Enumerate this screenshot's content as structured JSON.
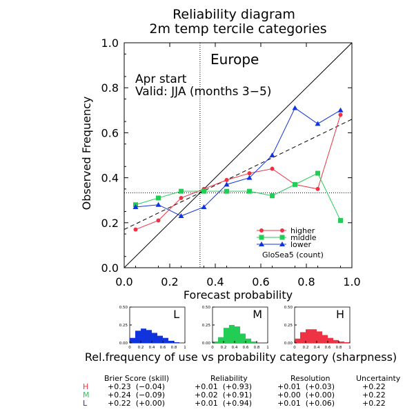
{
  "title": {
    "line1": "Reliability diagram",
    "line2": "2m temp tercile categories"
  },
  "main_chart": {
    "region": "Europe",
    "start": "Apr start",
    "valid": "Valid: JJA (months 3−5)",
    "xlabel": "Forecast probability",
    "ylabel": "Observed Frequency",
    "xticks": [
      "0.0",
      "0.2",
      "0.4",
      "0.6",
      "0.8",
      "1.0"
    ],
    "yticks": [
      "0.0",
      "0.2",
      "0.4",
      "0.6",
      "0.8",
      "1.0"
    ],
    "legend": {
      "higher": "higher",
      "middle": "middle",
      "lower": "lower",
      "model": "GloSea5 (count)"
    }
  },
  "sharpness": {
    "caption": "Rel.frequency of use vs probability category (sharpness)",
    "yticks": [
      "0.50",
      "0.25",
      "0.00"
    ],
    "xticks": [
      "0",
      "0.2",
      "0.4",
      "0.6",
      "0.8",
      "1"
    ]
  },
  "scores": {
    "headers": {
      "brier": "Brier Score (skill)",
      "reliability": "Reliability",
      "resolution": "Resolution",
      "uncertainty": "Uncertainty"
    },
    "rows": [
      {
        "cat": "H",
        "brier": "+0.23  (−0.04)",
        "rel": "+0.01  (+0.93)",
        "res": "+0.01  (+0.03)",
        "unc": "+0.22"
      },
      {
        "cat": "M",
        "brier": "+0.24  (−0.09)",
        "rel": "+0.02  (+0.91)",
        "res": "+0.00  (+0.00)",
        "unc": "+0.22"
      },
      {
        "cat": "L",
        "brier": "+0.22  (+0.00)",
        "rel": "+0.01  (+0.94)",
        "res": "+0.01  (+0.06)",
        "unc": "+0.22"
      }
    ]
  },
  "colors": {
    "higher": "#ee3344",
    "middle": "#22cc55",
    "lower": "#1133dd",
    "axes": "#000000"
  },
  "chart_data": [
    {
      "type": "line",
      "title": "Reliability diagram 2m temp tercile categories",
      "xlabel": "Forecast probability",
      "ylabel": "Observed Frequency",
      "xlim": [
        0,
        1
      ],
      "ylim": [
        0,
        1
      ],
      "x": [
        0.05,
        0.15,
        0.25,
        0.35,
        0.45,
        0.55,
        0.65,
        0.75,
        0.85,
        0.95
      ],
      "series": [
        {
          "name": "higher",
          "values": [
            0.17,
            0.21,
            0.31,
            0.35,
            0.39,
            0.42,
            0.44,
            0.37,
            0.35,
            0.68
          ]
        },
        {
          "name": "middle",
          "values": [
            0.28,
            0.31,
            0.34,
            0.34,
            0.34,
            0.34,
            0.32,
            0.37,
            0.42,
            0.21
          ]
        },
        {
          "name": "lower",
          "values": [
            0.27,
            0.28,
            0.23,
            0.27,
            0.37,
            0.4,
            0.5,
            0.71,
            0.64,
            0.7
          ]
        }
      ],
      "reference_lines": {
        "climatology_x": 0.333,
        "climatology_y": 0.333,
        "fit_line": {
          "intercept": 0.17,
          "slope": 0.49
        }
      },
      "grid": false
    },
    {
      "type": "bar",
      "title": "L",
      "categories": [
        "0.05",
        "0.15",
        "0.25",
        "0.35",
        "0.45",
        "0.55",
        "0.65",
        "0.75",
        "0.85",
        "0.95"
      ],
      "values": [
        0.07,
        0.17,
        0.2,
        0.18,
        0.14,
        0.1,
        0.07,
        0.03,
        0.01,
        0.0
      ],
      "ylim": [
        0,
        0.5
      ]
    },
    {
      "type": "bar",
      "title": "M",
      "categories": [
        "0.05",
        "0.15",
        "0.25",
        "0.35",
        "0.45",
        "0.55",
        "0.65",
        "0.75",
        "0.85",
        "0.95"
      ],
      "values": [
        0.02,
        0.08,
        0.21,
        0.25,
        0.23,
        0.13,
        0.06,
        0.02,
        0.0,
        0.0
      ],
      "ylim": [
        0,
        0.5
      ]
    },
    {
      "type": "bar",
      "title": "H",
      "categories": [
        "0.05",
        "0.15",
        "0.25",
        "0.35",
        "0.45",
        "0.55",
        "0.65",
        "0.75",
        "0.85",
        "0.95"
      ],
      "values": [
        0.06,
        0.15,
        0.19,
        0.19,
        0.16,
        0.11,
        0.07,
        0.04,
        0.02,
        0.01
      ],
      "ylim": [
        0,
        0.5
      ]
    }
  ]
}
